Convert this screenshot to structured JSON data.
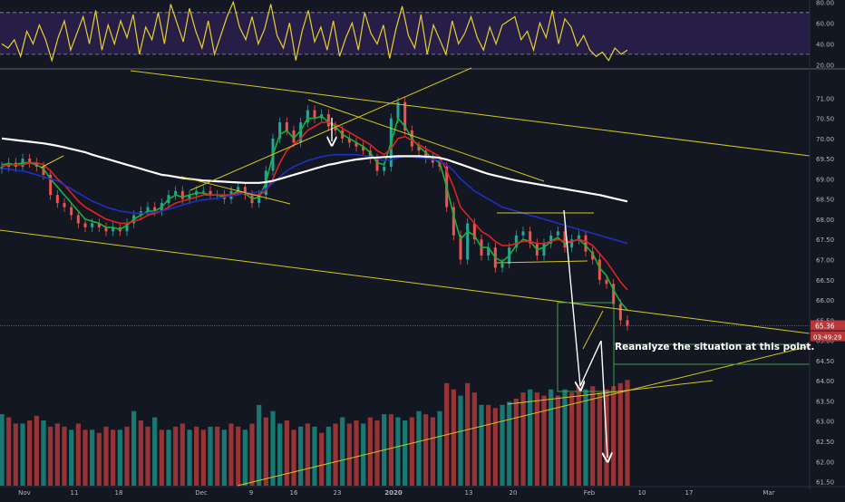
{
  "chart_data": [
    {
      "type": "line",
      "panel": "rsi",
      "title": "",
      "ylim": [
        16,
        82
      ],
      "levels": [
        70,
        30
      ],
      "y_ticks": [
        "80.00",
        "60.00",
        "40.00",
        "20.00"
      ],
      "series": [
        {
          "color": "#e6d12a",
          "values": [
            40,
            36,
            44,
            28,
            52,
            40,
            58,
            44,
            24,
            46,
            62,
            34,
            50,
            66,
            40,
            72,
            34,
            58,
            40,
            62,
            46,
            68,
            30,
            56,
            44,
            70,
            40,
            78,
            60,
            42,
            74,
            52,
            36,
            62,
            30,
            48,
            66,
            80,
            56,
            44,
            66,
            40,
            54,
            78,
            48,
            36,
            60,
            24,
            52,
            72,
            42,
            56,
            34,
            62,
            28,
            46,
            60,
            34,
            70,
            50,
            40,
            58,
            26,
            54,
            76,
            48,
            36,
            68,
            30,
            58,
            44,
            30,
            62,
            40,
            50,
            66,
            46,
            34,
            56,
            40,
            58,
            62,
            66,
            44,
            52,
            34,
            60,
            46,
            72,
            40,
            64,
            56,
            38,
            48,
            34,
            28,
            32,
            24,
            36,
            30,
            34
          ]
        }
      ]
    },
    {
      "type": "candlestick",
      "panel": "price",
      "title": "",
      "ylim": [
        61.4,
        71.5
      ],
      "y_ticks": [
        "71.00",
        "70.50",
        "70.00",
        "69.50",
        "69.00",
        "68.50",
        "68.00",
        "67.50",
        "67.00",
        "66.50",
        "66.00",
        "65.50",
        "65.00",
        "64.50",
        "64.00",
        "63.50",
        "63.00",
        "62.50",
        "62.00",
        "61.50"
      ],
      "x_ticks": [
        "Nov",
        "11",
        "18",
        "Dec",
        "9",
        "16",
        "23",
        "2020",
        "13",
        "20",
        "Feb",
        "10",
        "17",
        "Mar"
      ],
      "closes": [
        69.3,
        69.4,
        69.3,
        69.5,
        69.4,
        69.3,
        69.1,
        68.6,
        68.4,
        68.3,
        68.1,
        67.9,
        67.8,
        67.9,
        67.8,
        67.7,
        67.8,
        67.7,
        67.9,
        68.1,
        68.2,
        68.3,
        68.2,
        68.4,
        68.6,
        68.7,
        68.5,
        68.6,
        68.7,
        68.7,
        68.6,
        68.6,
        68.5,
        68.7,
        68.8,
        68.6,
        68.4,
        68.6,
        69.2,
        70.0,
        70.4,
        70.2,
        69.9,
        70.4,
        70.7,
        70.5,
        70.6,
        70.3,
        70.2,
        70.0,
        69.9,
        69.8,
        69.7,
        69.5,
        69.2,
        69.3,
        70.5,
        70.9,
        70.2,
        69.8,
        69.7,
        69.5,
        69.4,
        69.3,
        68.3,
        67.6,
        67.0,
        67.9,
        67.5,
        67.1,
        67.3,
        66.8,
        66.9,
        67.3,
        67.6,
        67.7,
        67.4,
        67.1,
        67.4,
        67.6,
        67.7,
        67.3,
        67.5,
        67.6,
        67.2,
        67.0,
        66.5,
        66.4,
        65.9,
        65.5,
        65.36
      ],
      "last_price_label": "65.36",
      "countdown_label": "03:49:29",
      "series": [
        {
          "color": "#16b33a",
          "values": [
            69.35,
            69.38,
            69.35,
            69.4,
            69.4,
            69.35,
            69.25,
            69.0,
            68.8,
            68.6,
            68.4,
            68.2,
            68.0,
            67.95,
            67.9,
            67.8,
            67.8,
            67.75,
            67.85,
            68.0,
            68.1,
            68.2,
            68.2,
            68.3,
            68.5,
            68.6,
            68.55,
            68.6,
            68.65,
            68.65,
            68.6,
            68.6,
            68.55,
            68.6,
            68.7,
            68.65,
            68.5,
            68.55,
            68.9,
            69.6,
            70.1,
            70.2,
            70.0,
            70.2,
            70.5,
            70.5,
            70.55,
            70.4,
            70.3,
            70.1,
            70.0,
            69.9,
            69.8,
            69.65,
            69.4,
            69.35,
            69.9,
            70.5,
            70.3,
            70.0,
            69.8,
            69.65,
            69.5,
            69.4,
            68.8,
            68.1,
            67.5,
            67.7,
            67.6,
            67.3,
            67.3,
            67.05,
            66.95,
            67.1,
            67.35,
            67.5,
            67.45,
            67.25,
            67.3,
            67.45,
            67.55,
            67.4,
            67.45,
            67.5,
            67.35,
            67.15,
            66.8,
            66.6,
            66.25,
            65.95,
            65.75
          ]
        },
        {
          "color": "#e0231f",
          "values": [
            69.3,
            69.35,
            69.35,
            69.35,
            69.4,
            69.4,
            69.35,
            69.2,
            69.0,
            68.85,
            68.65,
            68.45,
            68.3,
            68.2,
            68.1,
            68.0,
            67.95,
            67.9,
            67.9,
            67.95,
            68.0,
            68.1,
            68.15,
            68.2,
            68.3,
            68.4,
            68.45,
            68.5,
            68.55,
            68.6,
            68.6,
            68.6,
            68.6,
            68.6,
            68.65,
            68.65,
            68.6,
            68.6,
            68.7,
            69.0,
            69.4,
            69.7,
            69.85,
            70.0,
            70.2,
            70.3,
            70.4,
            70.4,
            70.35,
            70.25,
            70.15,
            70.05,
            69.95,
            69.85,
            69.7,
            69.6,
            69.75,
            70.0,
            70.05,
            69.95,
            69.85,
            69.75,
            69.65,
            69.55,
            69.2,
            68.8,
            68.3,
            68.1,
            67.9,
            67.7,
            67.6,
            67.45,
            67.35,
            67.35,
            67.4,
            67.45,
            67.45,
            67.4,
            67.4,
            67.45,
            67.5,
            67.45,
            67.45,
            67.5,
            67.45,
            67.35,
            67.15,
            66.95,
            66.7,
            66.45,
            66.25
          ]
        },
        {
          "color": "#1f2fbf",
          "values": [
            69.25,
            69.25,
            69.2,
            69.2,
            69.15,
            69.1,
            69.05,
            69.0,
            68.95,
            68.85,
            68.75,
            68.65,
            68.55,
            68.45,
            68.38,
            68.3,
            68.25,
            68.2,
            68.18,
            68.15,
            68.15,
            68.15,
            68.18,
            68.2,
            68.25,
            68.3,
            68.35,
            68.4,
            68.45,
            68.48,
            68.5,
            68.52,
            68.55,
            68.58,
            68.6,
            68.65,
            68.65,
            68.68,
            68.75,
            68.9,
            69.05,
            69.2,
            69.3,
            69.38,
            69.45,
            69.5,
            69.55,
            69.58,
            69.6,
            69.6,
            69.6,
            69.6,
            69.58,
            69.55,
            69.5,
            69.45,
            69.48,
            69.52,
            69.55,
            69.55,
            69.52,
            69.5,
            69.48,
            69.45,
            69.35,
            69.2,
            69.0,
            68.85,
            68.7,
            68.6,
            68.5,
            68.4,
            68.3,
            68.25,
            68.2,
            68.15,
            68.1,
            68.05,
            68.0,
            67.95,
            67.9,
            67.85,
            67.8,
            67.75,
            67.7,
            67.65,
            67.6,
            67.55,
            67.5,
            67.45,
            67.4
          ]
        },
        {
          "color": "#ffffff",
          "values": [
            70.0,
            69.98,
            69.96,
            69.94,
            69.92,
            69.9,
            69.88,
            69.85,
            69.82,
            69.78,
            69.74,
            69.7,
            69.66,
            69.6,
            69.55,
            69.5,
            69.45,
            69.4,
            69.35,
            69.3,
            69.25,
            69.2,
            69.15,
            69.1,
            69.08,
            69.05,
            69.02,
            69.0,
            68.98,
            68.96,
            68.95,
            68.94,
            68.93,
            68.92,
            68.91,
            68.9,
            68.9,
            68.9,
            68.92,
            68.95,
            69.0,
            69.05,
            69.1,
            69.15,
            69.2,
            69.25,
            69.3,
            69.35,
            69.38,
            69.42,
            69.45,
            69.48,
            69.5,
            69.52,
            69.53,
            69.54,
            69.55,
            69.56,
            69.56,
            69.56,
            69.56,
            69.55,
            69.54,
            69.52,
            69.48,
            69.42,
            69.36,
            69.3,
            69.24,
            69.18,
            69.12,
            69.08,
            69.04,
            69.0,
            68.96,
            68.93,
            68.9,
            68.87,
            68.84,
            68.81,
            68.78,
            68.75,
            68.72,
            68.69,
            68.66,
            68.63,
            68.6,
            68.56,
            68.52,
            68.48,
            68.44
          ]
        }
      ]
    },
    {
      "type": "bar",
      "panel": "volume",
      "title": "",
      "colors": {
        "up": "#1b8a80",
        "down": "#b0383a"
      },
      "values": [
        46,
        44,
        40,
        40,
        42,
        45,
        42,
        38,
        40,
        38,
        36,
        40,
        36,
        36,
        34,
        38,
        36,
        36,
        38,
        48,
        42,
        38,
        44,
        36,
        36,
        38,
        40,
        36,
        38,
        36,
        38,
        38,
        36,
        40,
        38,
        36,
        40,
        52,
        44,
        48,
        40,
        42,
        36,
        38,
        40,
        38,
        34,
        38,
        40,
        44,
        40,
        42,
        40,
        44,
        42,
        46,
        46,
        44,
        42,
        44,
        48,
        46,
        44,
        48,
        66,
        62,
        58,
        66,
        60,
        52,
        52,
        50,
        52,
        54,
        56,
        60,
        62,
        60,
        58,
        62,
        58,
        62,
        60,
        64,
        62,
        64,
        60,
        62,
        64,
        66,
        68
      ],
      "directions": [
        1,
        0,
        0,
        1,
        0,
        0,
        1,
        0,
        0,
        0,
        1,
        0,
        0,
        1,
        0,
        0,
        0,
        1,
        0,
        1,
        0,
        0,
        1,
        0,
        1,
        0,
        0,
        1,
        0,
        0,
        1,
        0,
        1,
        0,
        0,
        1,
        0,
        1,
        0,
        1,
        1,
        0,
        0,
        1,
        0,
        1,
        0,
        1,
        0,
        1,
        0,
        0,
        1,
        0,
        0,
        1,
        0,
        1,
        1,
        0,
        1,
        0,
        0,
        1,
        0,
        0,
        1,
        0,
        0,
        1,
        0,
        0,
        1,
        1,
        0,
        0,
        1,
        0,
        0,
        1,
        0,
        1,
        0,
        0,
        1,
        0,
        0,
        0,
        0,
        0,
        0
      ]
    }
  ],
  "annotation": {
    "text": "Reanalyze the situation at this point."
  },
  "colors": {
    "background": "#131722",
    "trendline": "#d4c51f",
    "box": "#3f9e4f",
    "arrow": "#ffffff",
    "axis_text": "#b2b5be"
  }
}
